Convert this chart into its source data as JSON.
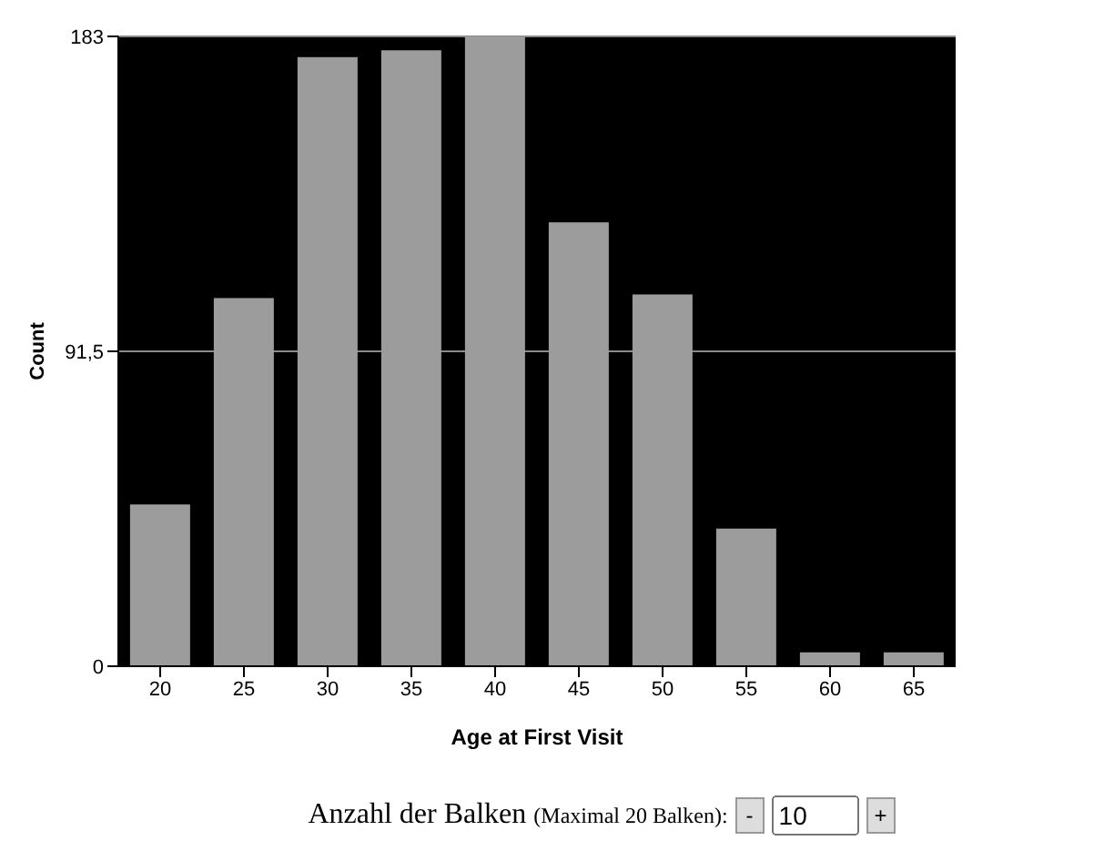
{
  "chart_data": {
    "type": "bar",
    "xlabel": "Age at First Visit",
    "ylabel": "Count",
    "categories": [
      "20",
      "25",
      "30",
      "35",
      "40",
      "45",
      "50",
      "55",
      "60",
      "65"
    ],
    "values": [
      47,
      107,
      177,
      179,
      183,
      129,
      108,
      40,
      4,
      4
    ],
    "color": "#9c9c9c",
    "ylim": [
      0,
      183
    ],
    "yticks": [
      0,
      {
        "value": 91.5,
        "label": "91,5"
      },
      183
    ],
    "grid": "y",
    "annotations": [
      "Anzahl der Balken",
      "(Maximal 20 Balken):",
      "-",
      "10",
      "+"
    ]
  }
}
